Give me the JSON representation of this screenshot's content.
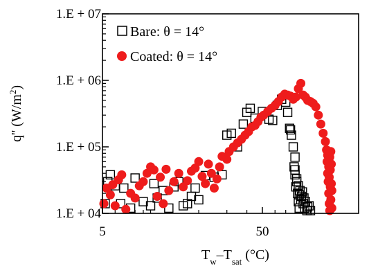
{
  "chart_data": {
    "type": "scatter",
    "title": "",
    "xlabel": {
      "main": "T",
      "sub1": "w",
      "dash": "–T",
      "sub2": "sat",
      "unit": " (°C)"
    },
    "ylabel": {
      "main": "q'' (W/m",
      "sup": "2",
      "close": ")"
    },
    "x_scale": "log",
    "y_scale": "log",
    "xlim": [
      5,
      200
    ],
    "ylim": [
      10000,
      10000000
    ],
    "x_ticks": [
      {
        "value": 5,
        "label": "5"
      },
      {
        "value": 50,
        "label": "50"
      }
    ],
    "y_ticks": [
      {
        "value": 10000,
        "label": "1.E + 04"
      },
      {
        "value": 100000,
        "label": "1.E + 05"
      },
      {
        "value": 1000000,
        "label": "1.E + 06"
      },
      {
        "value": 10000000,
        "label": "1.E + 07"
      }
    ],
    "grid": false,
    "legend_position": "top-left",
    "series": [
      {
        "name": "Bare: θ = 14°",
        "marker": "open-square",
        "color": "#000000",
        "points": [
          [
            5.2,
            14000
          ],
          [
            5.4,
            30000
          ],
          [
            5.6,
            38000
          ],
          [
            6.0,
            26000
          ],
          [
            6.5,
            14000
          ],
          [
            6.8,
            24000
          ],
          [
            7.5,
            12000
          ],
          [
            8.0,
            34000
          ],
          [
            9.0,
            15000
          ],
          [
            10.0,
            13000
          ],
          [
            10.5,
            28000
          ],
          [
            11.0,
            17000
          ],
          [
            12.0,
            22000
          ],
          [
            13.0,
            12000
          ],
          [
            14.0,
            25000
          ],
          [
            15.0,
            30000
          ],
          [
            16.0,
            13000
          ],
          [
            17.0,
            14000
          ],
          [
            18.0,
            18000
          ],
          [
            19.0,
            24000
          ],
          [
            20.0,
            16000
          ],
          [
            22.0,
            37000
          ],
          [
            25.0,
            35000
          ],
          [
            28.0,
            38000
          ],
          [
            30.0,
            150000
          ],
          [
            32.0,
            160000
          ],
          [
            35.0,
            100000
          ],
          [
            38.0,
            220000
          ],
          [
            40.0,
            330000
          ],
          [
            42.0,
            380000
          ],
          [
            45.0,
            270000
          ],
          [
            50.0,
            340000
          ],
          [
            55.0,
            260000
          ],
          [
            58.0,
            250000
          ],
          [
            62.0,
            420000
          ],
          [
            66.0,
            520000
          ],
          [
            70.0,
            470000
          ],
          [
            72.0,
            330000
          ],
          [
            74.0,
            190000
          ],
          [
            75.0,
            180000
          ],
          [
            76.0,
            150000
          ],
          [
            78.0,
            100000
          ],
          [
            80.0,
            70000
          ],
          [
            79.0,
            50000
          ],
          [
            80.0,
            45000
          ],
          [
            82.0,
            30000
          ],
          [
            80.0,
            38000
          ],
          [
            81.0,
            25000
          ],
          [
            83.0,
            20000
          ],
          [
            84.0,
            15000
          ],
          [
            85.0,
            12000
          ],
          [
            86.0,
            22000
          ],
          [
            88.0,
            18000
          ],
          [
            90.0,
            14000
          ],
          [
            92.0,
            12000
          ],
          [
            95.0,
            11000
          ],
          [
            98.0,
            13000
          ],
          [
            100.0,
            11000
          ],
          [
            84.0,
            26000
          ],
          [
            87.0,
            16000
          ],
          [
            89.0,
            21000
          ],
          [
            91.0,
            17000
          ],
          [
            93.0,
            15000
          ],
          [
            96.0,
            12500
          ],
          [
            82.0,
            33000
          ],
          [
            85.0,
            19000
          ]
        ]
      },
      {
        "name": "Coated: θ = 14°",
        "marker": "filled-circle",
        "color": "#ee1c1c",
        "points": [
          [
            5.1,
            14000
          ],
          [
            5.3,
            24000
          ],
          [
            5.6,
            19000
          ],
          [
            5.8,
            27000
          ],
          [
            6.0,
            13000
          ],
          [
            6.3,
            32000
          ],
          [
            6.6,
            38000
          ],
          [
            7.0,
            11500
          ],
          [
            7.5,
            20000
          ],
          [
            8.0,
            17000
          ],
          [
            8.5,
            26000
          ],
          [
            9.0,
            30000
          ],
          [
            9.5,
            40000
          ],
          [
            10.0,
            50000
          ],
          [
            10.5,
            45000
          ],
          [
            11.0,
            18000
          ],
          [
            11.5,
            35000
          ],
          [
            12.0,
            14000
          ],
          [
            12.5,
            46000
          ],
          [
            13.0,
            22000
          ],
          [
            14.0,
            30000
          ],
          [
            15.0,
            40000
          ],
          [
            16.0,
            25000
          ],
          [
            17.0,
            31000
          ],
          [
            18.0,
            43000
          ],
          [
            19.0,
            48000
          ],
          [
            20.0,
            60000
          ],
          [
            21.0,
            36000
          ],
          [
            22.0,
            28000
          ],
          [
            23.0,
            55000
          ],
          [
            24.0,
            40000
          ],
          [
            25.0,
            24000
          ],
          [
            26.0,
            33000
          ],
          [
            27.0,
            50000
          ],
          [
            28.0,
            72000
          ],
          [
            30.0,
            65000
          ],
          [
            31.0,
            85000
          ],
          [
            33.0,
            100000
          ],
          [
            35.0,
            115000
          ],
          [
            37.0,
            130000
          ],
          [
            39.0,
            150000
          ],
          [
            41.0,
            170000
          ],
          [
            43.0,
            200000
          ],
          [
            45.0,
            210000
          ],
          [
            47.0,
            240000
          ],
          [
            49.0,
            280000
          ],
          [
            51.0,
            300000
          ],
          [
            54.0,
            340000
          ],
          [
            57.0,
            380000
          ],
          [
            60.0,
            420000
          ],
          [
            63.0,
            480000
          ],
          [
            66.0,
            560000
          ],
          [
            69.0,
            620000
          ],
          [
            72.0,
            600000
          ],
          [
            75.0,
            580000
          ],
          [
            78.0,
            520000
          ],
          [
            81.0,
            560000
          ],
          [
            84.0,
            750000
          ],
          [
            87.0,
            900000
          ],
          [
            90.0,
            600000
          ],
          [
            93.0,
            560000
          ],
          [
            96.0,
            500000
          ],
          [
            100.0,
            480000
          ],
          [
            104.0,
            450000
          ],
          [
            108.0,
            400000
          ],
          [
            112.0,
            300000
          ],
          [
            116.0,
            220000
          ],
          [
            120.0,
            160000
          ],
          [
            124.0,
            120000
          ],
          [
            126.0,
            90000
          ],
          [
            127.0,
            60000
          ],
          [
            128.0,
            40000
          ],
          [
            129.0,
            30000
          ],
          [
            130.0,
            20000
          ],
          [
            131.0,
            14000
          ],
          [
            132.0,
            11000
          ],
          [
            128.0,
            75000
          ],
          [
            130.0,
            50000
          ],
          [
            131.0,
            35000
          ],
          [
            133.0,
            25000
          ],
          [
            134.0,
            16000
          ],
          [
            132.0,
            70000
          ],
          [
            133.0,
            45000
          ],
          [
            135.0,
            28000
          ],
          [
            136.0,
            12000
          ],
          [
            134.0,
            85000
          ],
          [
            135.0,
            55000
          ],
          [
            136.0,
            22000
          ]
        ]
      }
    ]
  }
}
